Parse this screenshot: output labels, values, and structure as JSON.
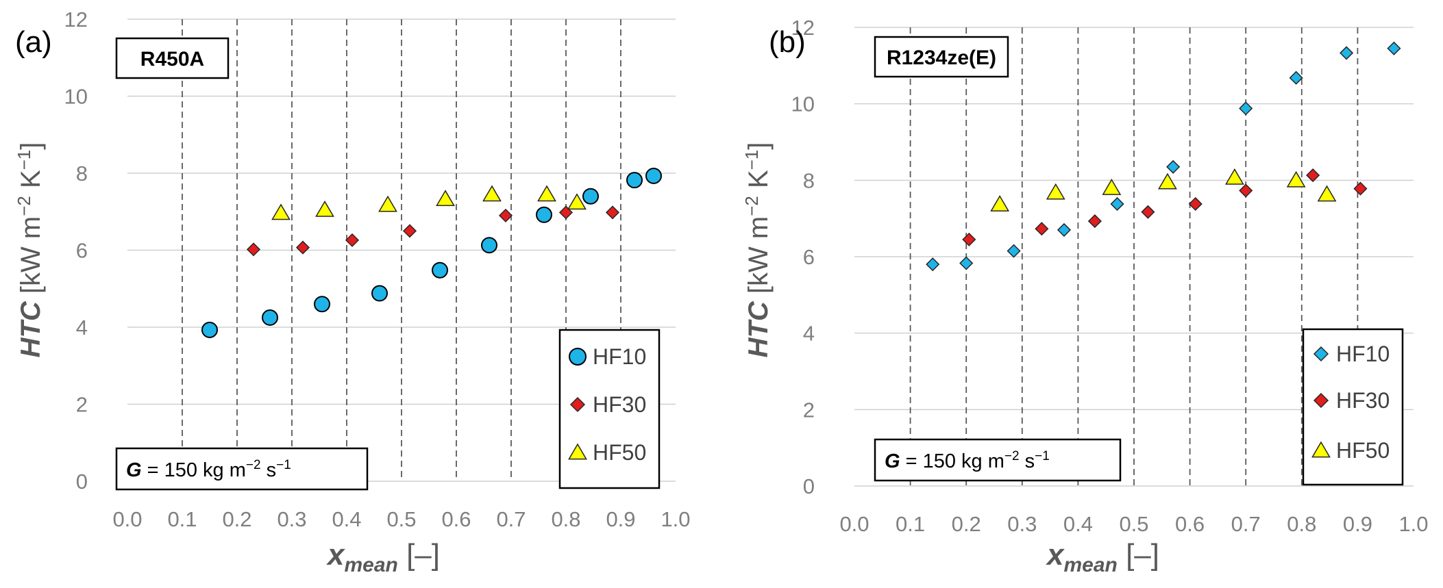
{
  "chart_data": [
    {
      "type": "scatter",
      "panel_label": "(a)",
      "refrigerant": "R450A",
      "condition": {
        "symbol": "G",
        "text": " = 150 kg m",
        "exp1": "−2",
        "mid": " s",
        "exp2": "−1"
      },
      "xlabel": {
        "main": "x",
        "sub": "mean",
        "unit": " [–]"
      },
      "ylabel": {
        "main": "HTC",
        "unit": " [kW m",
        "exp1": "−2",
        "mid": " K",
        "exp2": "−1",
        "close": "]"
      },
      "xlim": [
        0,
        1.0
      ],
      "ylim": [
        0,
        12
      ],
      "xticks": [
        "0.0",
        "0.1",
        "0.2",
        "0.3",
        "0.4",
        "0.5",
        "0.6",
        "0.7",
        "0.8",
        "0.9",
        "1.0"
      ],
      "yticks": [
        "0",
        "2",
        "4",
        "6",
        "8",
        "10",
        "12"
      ],
      "series": [
        {
          "name": "HF10",
          "marker": "circle",
          "color": "#1fb4e8",
          "x": [
            0.15,
            0.26,
            0.355,
            0.46,
            0.57,
            0.66,
            0.76,
            0.845,
            0.925,
            0.96
          ],
          "y": [
            3.93,
            4.25,
            4.6,
            4.88,
            5.48,
            6.13,
            6.92,
            7.4,
            7.82,
            7.93
          ]
        },
        {
          "name": "HF30",
          "marker": "diamond",
          "color": "#e01e1e",
          "x": [
            0.23,
            0.32,
            0.41,
            0.515,
            0.69,
            0.8,
            0.885
          ],
          "y": [
            6.02,
            6.07,
            6.26,
            6.5,
            6.9,
            6.98,
            6.98
          ]
        },
        {
          "name": "HF50",
          "marker": "triangle",
          "color": "#ffff00",
          "x": [
            0.28,
            0.36,
            0.475,
            0.58,
            0.665,
            0.765,
            0.82
          ],
          "y": [
            6.97,
            7.05,
            7.18,
            7.33,
            7.45,
            7.45,
            7.24
          ]
        }
      ]
    },
    {
      "type": "scatter",
      "panel_label": "(b)",
      "refrigerant": "R1234ze(E)",
      "condition": {
        "symbol": "G",
        "text": " = 150 kg m",
        "exp1": "−2",
        "mid": " s",
        "exp2": "−1"
      },
      "xlabel": {
        "main": "x",
        "sub": "mean",
        "unit": " [–]"
      },
      "ylabel": {
        "main": "HTC",
        "unit": " [kW m",
        "exp1": "−2",
        "mid": " K",
        "exp2": "−1",
        "close": "]"
      },
      "xlim": [
        0,
        1.0
      ],
      "ylim": [
        0,
        12
      ],
      "xticks": [
        "0.0",
        "0.1",
        "0.2",
        "0.3",
        "0.4",
        "0.5",
        "0.6",
        "0.7",
        "0.8",
        "0.9",
        "1.0"
      ],
      "yticks": [
        "0",
        "2",
        "4",
        "6",
        "8",
        "10",
        "12"
      ],
      "series": [
        {
          "name": "HF10",
          "marker": "diamond",
          "color": "#1fb4e8",
          "x": [
            0.14,
            0.2,
            0.285,
            0.375,
            0.47,
            0.57,
            0.7,
            0.79,
            0.88,
            0.965
          ],
          "y": [
            5.8,
            5.83,
            6.15,
            6.7,
            7.38,
            8.35,
            9.88,
            10.68,
            11.33,
            11.45
          ]
        },
        {
          "name": "HF30",
          "marker": "diamond",
          "color": "#e01e1e",
          "x": [
            0.205,
            0.335,
            0.43,
            0.525,
            0.61,
            0.7,
            0.82,
            0.905
          ],
          "y": [
            6.45,
            6.73,
            6.93,
            7.17,
            7.38,
            7.73,
            8.13,
            7.78
          ]
        },
        {
          "name": "HF50",
          "marker": "triangle",
          "color": "#ffff00",
          "x": [
            0.26,
            0.36,
            0.46,
            0.56,
            0.68,
            0.79,
            0.845
          ],
          "y": [
            7.37,
            7.68,
            7.8,
            7.95,
            8.07,
            8.0,
            7.63
          ]
        }
      ]
    }
  ]
}
